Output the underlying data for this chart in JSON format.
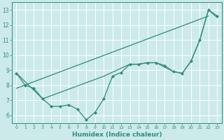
{
  "xlabel": "Humidex (Indice chaleur)",
  "bg_color": "#cceaea",
  "grid_color": "#ffffff",
  "line_color": "#2e8b7a",
  "xlim": [
    -0.5,
    23.5
  ],
  "ylim": [
    5.5,
    13.5
  ],
  "xticks": [
    0,
    1,
    2,
    3,
    4,
    5,
    6,
    7,
    8,
    9,
    10,
    11,
    12,
    13,
    14,
    15,
    16,
    17,
    18,
    19,
    20,
    21,
    22,
    23
  ],
  "yticks": [
    6,
    7,
    8,
    9,
    10,
    11,
    12,
    13
  ],
  "line1_x": [
    0,
    1,
    2,
    3,
    4,
    5,
    6,
    7,
    8,
    9,
    10,
    11,
    12,
    13,
    14,
    15,
    16,
    17,
    18,
    19,
    20,
    21,
    22,
    23
  ],
  "line1_y": [
    8.8,
    8.0,
    7.8,
    7.1,
    6.6,
    6.6,
    6.7,
    6.4,
    5.7,
    6.2,
    7.1,
    8.6,
    8.85,
    9.4,
    9.4,
    9.5,
    9.5,
    9.3,
    8.9,
    8.8,
    9.6,
    11.0,
    13.0,
    12.6
  ],
  "line2_x": [
    0,
    3,
    10,
    13,
    14,
    15,
    16,
    18,
    19,
    20,
    21,
    22,
    23
  ],
  "line2_y": [
    8.8,
    7.1,
    8.6,
    9.4,
    9.4,
    9.5,
    9.5,
    8.9,
    8.8,
    9.6,
    11.0,
    13.0,
    12.5
  ],
  "line3_x": [
    0,
    22
  ],
  "line3_y": [
    7.8,
    12.6
  ]
}
